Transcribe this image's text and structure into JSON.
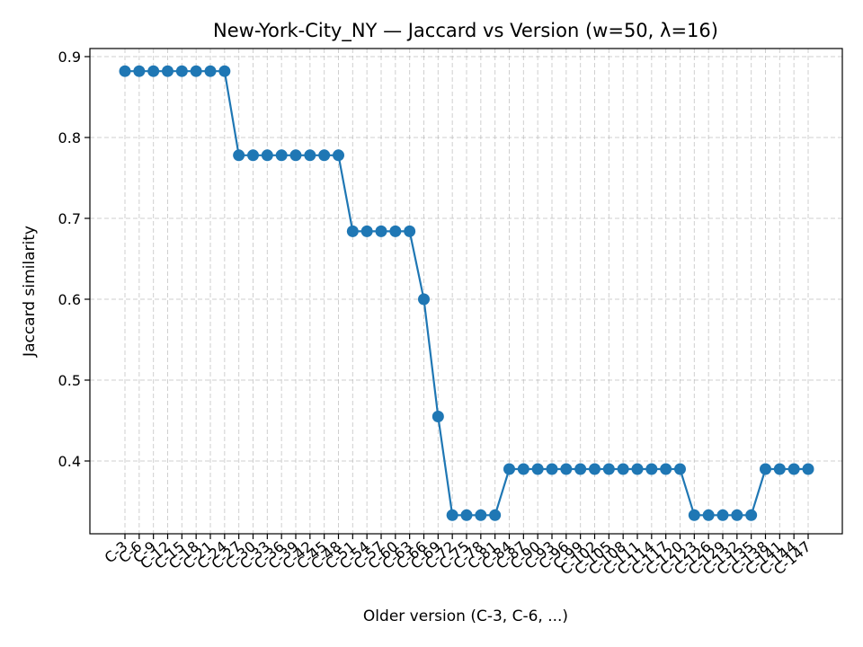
{
  "chart_data": {
    "type": "line",
    "title": "New-York-City_NY — Jaccard vs Version (w=50, λ=16)",
    "xlabel": "Older version (C-3, C-6, ...)",
    "ylabel": "Jaccard similarity",
    "ylim": [
      0.31,
      0.91
    ],
    "yticks": [
      0.4,
      0.5,
      0.6,
      0.7,
      0.8,
      0.9
    ],
    "grid": true,
    "marker": "circle",
    "color": "#1f77b4",
    "x": [
      "C-3",
      "C-6",
      "C-9",
      "C-12",
      "C-15",
      "C-18",
      "C-21",
      "C-24",
      "C-27",
      "C-30",
      "C-33",
      "C-36",
      "C-39",
      "C-42",
      "C-45",
      "C-48",
      "C-51",
      "C-54",
      "C-57",
      "C-60",
      "C-63",
      "C-66",
      "C-69",
      "C-72",
      "C-75",
      "C-78",
      "C-81",
      "C-84",
      "C-87",
      "C-90",
      "C-93",
      "C-96",
      "C-99",
      "C-102",
      "C-105",
      "C-108",
      "C-111",
      "C-114",
      "C-117",
      "C-120",
      "C-123",
      "C-126",
      "C-129",
      "C-132",
      "C-135",
      "C-138",
      "C-141",
      "C-144",
      "C-147"
    ],
    "y": [
      0.882,
      0.882,
      0.882,
      0.882,
      0.882,
      0.882,
      0.882,
      0.882,
      0.778,
      0.778,
      0.778,
      0.778,
      0.778,
      0.778,
      0.778,
      0.778,
      0.684,
      0.684,
      0.684,
      0.684,
      0.684,
      0.6,
      0.455,
      0.333,
      0.333,
      0.333,
      0.333,
      0.39,
      0.39,
      0.39,
      0.39,
      0.39,
      0.39,
      0.39,
      0.39,
      0.39,
      0.39,
      0.39,
      0.39,
      0.39,
      0.333,
      0.333,
      0.333,
      0.333,
      0.333,
      0.39,
      0.39,
      0.39,
      0.39
    ]
  }
}
